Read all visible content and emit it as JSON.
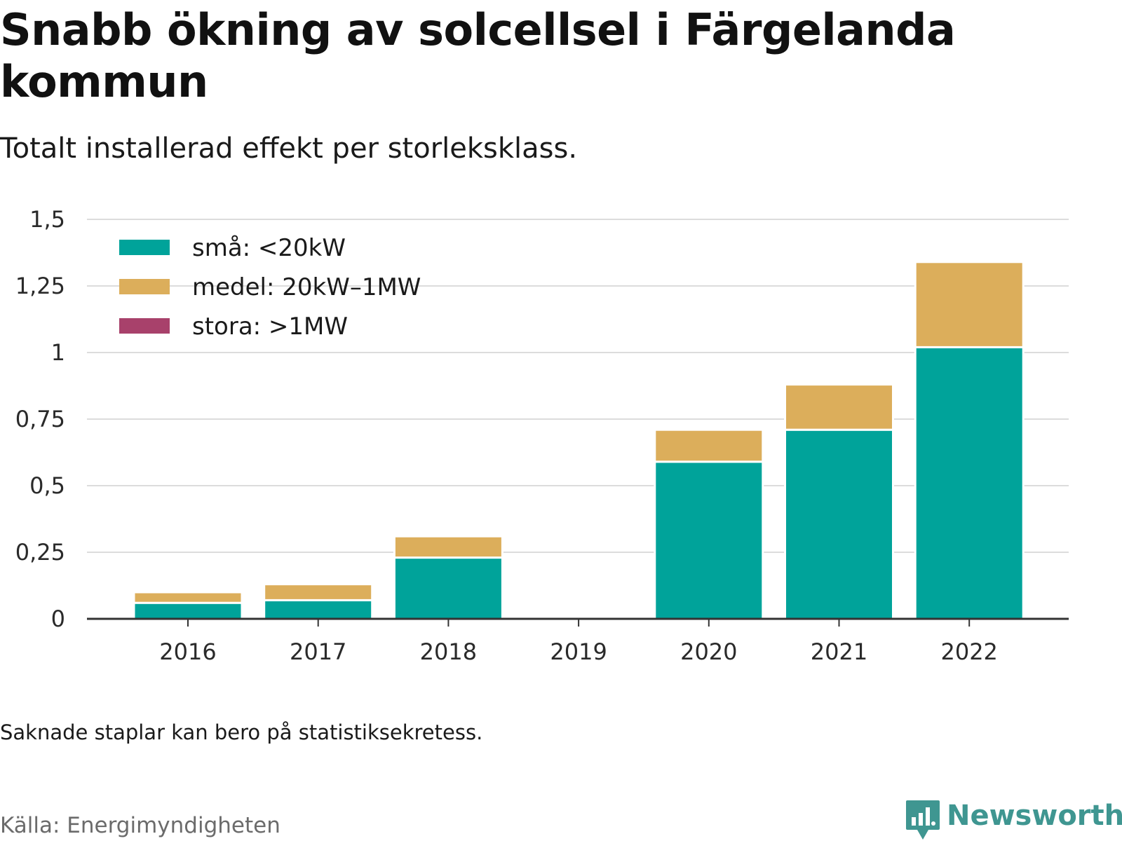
{
  "title": "Snabb ökning av solcellsel i Färgelanda kommun",
  "subtitle": "Totalt installerad effekt per storleksklass.",
  "note": "Saknade staplar kan bero på statistiksekretess.",
  "source": "Källa: Energimyndigheten",
  "brand": "Newsworthy",
  "chart_data": {
    "type": "bar",
    "stacked": true,
    "categories": [
      "2016",
      "2017",
      "2018",
      "2019",
      "2020",
      "2021",
      "2022"
    ],
    "series": [
      {
        "name": "små: <20kW",
        "color": "#00a39a",
        "values": [
          0.06,
          0.07,
          0.23,
          null,
          0.59,
          0.71,
          1.02
        ]
      },
      {
        "name": "medel: 20kW–1MW",
        "color": "#dcae5b",
        "values": [
          0.04,
          0.06,
          0.08,
          null,
          0.12,
          0.17,
          0.32
        ]
      },
      {
        "name": "stora: >1MW",
        "color": "#a8416b",
        "values": [
          0,
          0,
          0,
          null,
          0,
          0,
          0
        ]
      }
    ],
    "yticks": [
      0,
      0.25,
      0.5,
      0.75,
      1,
      1.25,
      1.5
    ],
    "ytick_labels": [
      "0",
      "0,25",
      "0,5",
      "0,75",
      "1",
      "1,25",
      "1,5"
    ],
    "ylim": [
      0,
      1.5
    ],
    "grid": true,
    "legend_position": "top-left"
  }
}
